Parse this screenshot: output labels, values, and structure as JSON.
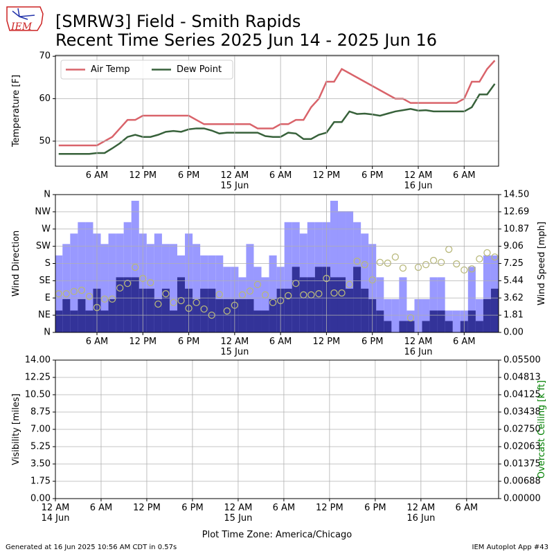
{
  "logo_text": "IEM",
  "title_line1": "[SMRW3] Field - Smith Rapids",
  "title_line2": "Recent Time Series 2025 Jun 14 - 2025 Jun 16",
  "xlabel": "Plot Time Zone: America/Chicago",
  "footer_left": "Generated at 16 Jun 2025 10:56 AM CDT in 0.57s",
  "footer_right": "IEM Autoplot App #43",
  "chart_data": [
    {
      "type": "line",
      "ylabel": "Temperature [F]",
      "x": [
        1,
        2,
        3,
        4,
        5,
        6,
        7,
        8,
        9,
        10,
        11,
        12,
        13,
        14,
        15,
        16,
        17,
        18,
        19,
        20,
        21,
        22,
        23,
        24,
        25,
        26,
        27,
        28,
        29,
        30,
        31,
        32,
        33,
        34,
        35,
        36,
        37,
        38,
        39,
        40,
        41,
        42,
        43,
        44,
        45,
        46,
        47,
        48,
        49,
        50,
        51,
        52,
        53,
        54,
        55,
        56,
        57,
        58
      ],
      "xlim": [
        0.57,
        58.5
      ],
      "xticks": [
        {
          "value": 6,
          "label": "6 AM"
        },
        {
          "value": 12,
          "label": "12 PM"
        },
        {
          "value": 18,
          "label": "6 PM"
        },
        {
          "value": 24,
          "label": "12 AM\n15 Jun"
        },
        {
          "value": 30,
          "label": "6 AM"
        },
        {
          "value": 36,
          "label": "12 PM"
        },
        {
          "value": 42,
          "label": "6 PM"
        },
        {
          "value": 48,
          "label": "12 AM\n16 Jun"
        },
        {
          "value": 54,
          "label": "6 AM"
        }
      ],
      "ylim": [
        44.1,
        70.2
      ],
      "yticks": [
        50,
        60,
        70
      ],
      "grid": true,
      "legend": "upper left",
      "series": [
        {
          "name": "Air Temp",
          "color": "#d9636a",
          "values": [
            49,
            49,
            49,
            49,
            49,
            49,
            50,
            51,
            53,
            55,
            55,
            56,
            56,
            56,
            56,
            56,
            56,
            56,
            55,
            54,
            54,
            54,
            54,
            54,
            54,
            54,
            53,
            53,
            53,
            54,
            54,
            55,
            55,
            58,
            60,
            64,
            64,
            67,
            66,
            65,
            64,
            63,
            62,
            61,
            60,
            60,
            59,
            59,
            59,
            59,
            59,
            59,
            59,
            60,
            64,
            64,
            67,
            69
          ]
        },
        {
          "name": "Dew Point",
          "color": "#37613a",
          "values": [
            47,
            47,
            47,
            47,
            47,
            47.2,
            47.2,
            48.3,
            49.5,
            51,
            51.5,
            51,
            51,
            51.5,
            52.2,
            52.4,
            52.2,
            52.8,
            53,
            53,
            52.5,
            51.8,
            52,
            52,
            52,
            52,
            52,
            51.2,
            51,
            51,
            52,
            51.8,
            50.5,
            50.5,
            51.5,
            52,
            54.5,
            54.5,
            57,
            56.4,
            56.5,
            56.3,
            56,
            56.5,
            57,
            57.3,
            57.6,
            57.2,
            57.3,
            57,
            57,
            57,
            57,
            57,
            58,
            61,
            61,
            63.5
          ]
        }
      ]
    },
    {
      "type": "bar",
      "ylabel": "Wind Direction",
      "y2label": "Wind Speed [mph]",
      "x": [
        1,
        2,
        3,
        4,
        5,
        6,
        7,
        8,
        9,
        10,
        11,
        12,
        13,
        14,
        15,
        16,
        17,
        18,
        19,
        20,
        21,
        22,
        23,
        24,
        25,
        26,
        27,
        28,
        29,
        30,
        31,
        32,
        33,
        34,
        35,
        36,
        37,
        38,
        39,
        40,
        41,
        42,
        43,
        44,
        45,
        46,
        47,
        48,
        49,
        50,
        51,
        52,
        53,
        54,
        55,
        56,
        57,
        58
      ],
      "xlim": [
        0.57,
        58.5
      ],
      "xticks": [
        {
          "value": 6,
          "label": "6 AM"
        },
        {
          "value": 12,
          "label": "12 PM"
        },
        {
          "value": 18,
          "label": "6 PM"
        },
        {
          "value": 24,
          "label": "12 AM\n15 Jun"
        },
        {
          "value": 30,
          "label": "6 AM"
        },
        {
          "value": 36,
          "label": "12 PM"
        },
        {
          "value": 42,
          "label": "6 PM"
        },
        {
          "value": 48,
          "label": "12 AM\n16 Jun"
        },
        {
          "value": 54,
          "label": "6 AM"
        }
      ],
      "ylim": [
        0,
        360
      ],
      "yticks": [
        {
          "value": 0,
          "label": "N"
        },
        {
          "value": 45,
          "label": "NE"
        },
        {
          "value": 90,
          "label": "E"
        },
        {
          "value": 135,
          "label": "SE"
        },
        {
          "value": 180,
          "label": "S"
        },
        {
          "value": 225,
          "label": "SW"
        },
        {
          "value": 270,
          "label": "W"
        },
        {
          "value": 315,
          "label": "NW"
        },
        {
          "value": 360,
          "label": "N"
        }
      ],
      "y2lim": [
        0,
        14.5
      ],
      "y2ticks": [
        {
          "value": 0,
          "label": "0.00"
        },
        {
          "value": 1.8125,
          "label": "1.81"
        },
        {
          "value": 3.625,
          "label": "3.62"
        },
        {
          "value": 5.4375,
          "label": "5.44"
        },
        {
          "value": 7.25,
          "label": "7.25"
        },
        {
          "value": 9.0625,
          "label": "9.06"
        },
        {
          "value": 10.875,
          "label": "10.87"
        },
        {
          "value": 12.6875,
          "label": "12.69"
        },
        {
          "value": 14.5,
          "label": "14.50"
        }
      ],
      "grid": true,
      "series": [
        {
          "type": "bar",
          "axis": "y2",
          "color": "#9999ff",
          "values": [
            8.1,
            9.3,
            10.4,
            11.6,
            11.6,
            10.4,
            9.3,
            10.4,
            10.4,
            11.6,
            13.85,
            10.4,
            9.3,
            10.4,
            9.3,
            9.3,
            8.1,
            10.4,
            9.3,
            8.1,
            8.1,
            8.1,
            6.9,
            6.9,
            5.8,
            9.3,
            6.9,
            5.8,
            8.1,
            6.9,
            11.6,
            11.6,
            10.4,
            11.6,
            11.6,
            11.6,
            13.85,
            12.75,
            12.75,
            11.6,
            10.4,
            9.3,
            5.8,
            3.5,
            3.5,
            5.8,
            2.3,
            3.5,
            3.5,
            5.8,
            5.8,
            2.3,
            2.3,
            2.3,
            6.9,
            3.5,
            8.1,
            8.1
          ]
        },
        {
          "type": "bar",
          "axis": "y2",
          "color": "#333399",
          "values": [
            2.3,
            3.5,
            2.3,
            3.5,
            2.3,
            4.6,
            2.3,
            3.5,
            5.8,
            5.8,
            5.8,
            4.6,
            4.6,
            3.5,
            4.6,
            2.3,
            5.8,
            4.6,
            3.5,
            4.6,
            4.6,
            3.5,
            3.5,
            3.5,
            3.5,
            3.5,
            2.3,
            2.3,
            3.5,
            4.6,
            4.6,
            6.9,
            5.8,
            5.8,
            6.9,
            6.9,
            5.8,
            5.8,
            4.6,
            6.9,
            4.6,
            3.5,
            2.3,
            1.2,
            0,
            1.2,
            1.2,
            0,
            1.2,
            2.3,
            2.3,
            1.2,
            0,
            1.2,
            2.3,
            1.2,
            3.5,
            4.6
          ]
        },
        {
          "type": "scatter",
          "color": "#b8b87a",
          "values": [
            101,
            101,
            107,
            110,
            94,
            65,
            87,
            87,
            116,
            128,
            170,
            141,
            130,
            74,
            101,
            78,
            83,
            63,
            78,
            61,
            45,
            99,
            56,
            71,
            98,
            108,
            125,
            98,
            78,
            83,
            96,
            128,
            98,
            98,
            101,
            141,
            103,
            103,
            125,
            186,
            177,
            137,
            183,
            181,
            197,
            168,
            38,
            170,
            177,
            188,
            183,
            217,
            179,
            163,
            166,
            192,
            208,
            197
          ]
        }
      ]
    },
    {
      "type": "line",
      "ylabel": "Visibility [miles]",
      "y2label": "Overcast Ceiling [k ft]",
      "y2label_color": "#008000",
      "x": [],
      "xlim": [
        0,
        58.2
      ],
      "xticks": [
        {
          "value": 0,
          "label": "12 AM\n14 Jun"
        },
        {
          "value": 6,
          "label": "6 AM"
        },
        {
          "value": 12,
          "label": "12 PM"
        },
        {
          "value": 18,
          "label": "6 PM"
        },
        {
          "value": 24,
          "label": "12 AM\n15 Jun"
        },
        {
          "value": 30,
          "label": "6 AM"
        },
        {
          "value": 36,
          "label": "12 PM"
        },
        {
          "value": 42,
          "label": "6 PM"
        },
        {
          "value": 48,
          "label": "12 AM\n16 Jun"
        },
        {
          "value": 54,
          "label": "6 AM"
        }
      ],
      "ylim": [
        0,
        14
      ],
      "yticks": [
        {
          "value": 0,
          "label": "0.00"
        },
        {
          "value": 1.75,
          "label": "1.75"
        },
        {
          "value": 3.5,
          "label": "3.50"
        },
        {
          "value": 5.25,
          "label": "5.25"
        },
        {
          "value": 7,
          "label": "7.00"
        },
        {
          "value": 8.75,
          "label": "8.75"
        },
        {
          "value": 10.5,
          "label": "10.50"
        },
        {
          "value": 12.25,
          "label": "12.25"
        },
        {
          "value": 14,
          "label": "14.00"
        }
      ],
      "y2lim": [
        0,
        0.055
      ],
      "y2ticks": [
        {
          "value": 0,
          "label": "0.00000"
        },
        {
          "value": 0.006875,
          "label": "0.00688"
        },
        {
          "value": 0.01375,
          "label": "0.01375"
        },
        {
          "value": 0.020625,
          "label": "0.02063"
        },
        {
          "value": 0.0275,
          "label": "0.02750"
        },
        {
          "value": 0.034375,
          "label": "0.03438"
        },
        {
          "value": 0.04125,
          "label": "0.04125"
        },
        {
          "value": 0.048125,
          "label": "0.04813"
        },
        {
          "value": 0.055,
          "label": "0.05500"
        }
      ],
      "grid": true,
      "series": []
    }
  ]
}
